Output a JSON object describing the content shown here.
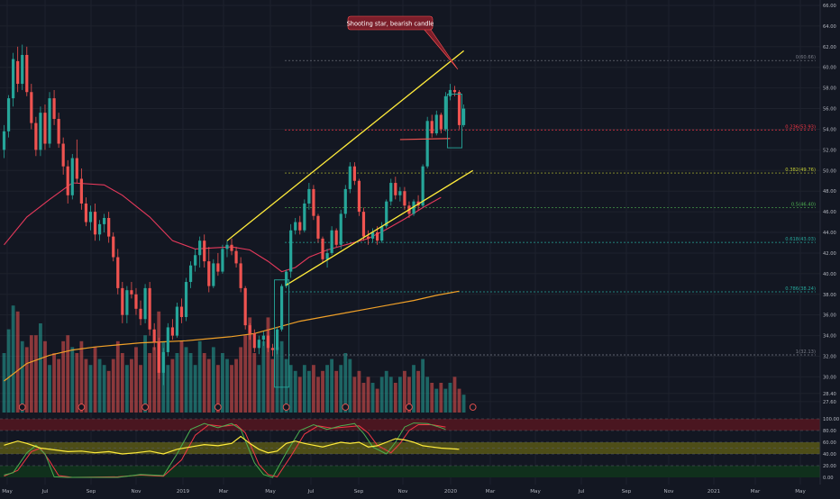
{
  "theme": {
    "background": "#131722",
    "grid": "#1e222d",
    "up": "#26a69a",
    "down": "#ef5350",
    "channel": "#ffeb3b",
    "ma50": "#e5395b",
    "ma200": "#f0a028",
    "fib_colors": [
      "#787b86",
      "#f23645",
      "#c0ca33",
      "#4caf50",
      "#26a69a",
      "#26a69a",
      "#787b86"
    ],
    "callout_bg": "#7b1e2a",
    "callout_border": "#ff5252",
    "stoch_k": "#4caf50",
    "stoch_d": "#f23645",
    "rsi": "#ffeb3b",
    "overbought_band": "#4a1620",
    "rsi_band": "#4d4d18",
    "oversold_band": "#10301c",
    "earnings_marker": "#ef5350"
  },
  "annotation": {
    "callout": "Shooting star, bearish candle"
  },
  "chart_data": {
    "type": "candlestick",
    "title": "",
    "price_axis": {
      "ylim": [
        26.72,
        66.0
      ],
      "ticks": [
        "66.00",
        "64.00",
        "62.00",
        "60.00",
        "58.00",
        "56.00",
        "54.00",
        "52.00",
        "50.00",
        "48.00",
        "46.00",
        "44.00",
        "42.00",
        "40.00",
        "38.00",
        "36.00",
        "34.00",
        "32.00",
        "30.00",
        "28.40",
        "27.60"
      ]
    },
    "indicator_axis": {
      "ylim": [
        0,
        100
      ],
      "ticks": [
        "100.00",
        "80.00",
        "60.00",
        "40.00",
        "20.00",
        "0.00"
      ]
    },
    "time_axis": [
      "May",
      "Jul",
      "Sep",
      "Nov",
      "2019",
      "Mar",
      "May",
      "Jul",
      "Sep",
      "Nov",
      "2020",
      "Mar",
      "May",
      "Jul",
      "Sep",
      "Nov",
      "2021",
      "Mar",
      "May"
    ],
    "fibonacci_levels": [
      {
        "label": "0(60.66)",
        "value": 60.66
      },
      {
        "label": "0.236(53.93)",
        "value": 53.93
      },
      {
        "label": "0.382(49.76)",
        "value": 49.76
      },
      {
        "label": "0.5(46.40)",
        "value": 46.4
      },
      {
        "label": "0.618(43.03)",
        "value": 43.03
      },
      {
        "label": "0.786(38.24)",
        "value": 38.24
      },
      {
        "label": "1(32.13)",
        "value": 32.13
      }
    ],
    "ohlc": [
      [
        52.0,
        54.4,
        51.2,
        53.8
      ],
      [
        53.8,
        57.3,
        53.2,
        57.0
      ],
      [
        57.0,
        61.4,
        56.2,
        60.8
      ],
      [
        60.6,
        62.0,
        57.6,
        58.4
      ],
      [
        58.4,
        62.2,
        57.8,
        61.2
      ],
      [
        61.2,
        62.0,
        57.2,
        57.6
      ],
      [
        57.6,
        58.4,
        54.0,
        54.6
      ],
      [
        54.6,
        55.2,
        51.4,
        52.0
      ],
      [
        52.0,
        56.2,
        51.4,
        55.6
      ],
      [
        55.6,
        56.4,
        52.0,
        52.6
      ],
      [
        52.6,
        57.6,
        52.2,
        57.0
      ],
      [
        57.0,
        57.8,
        54.4,
        55.0
      ],
      [
        55.0,
        55.6,
        52.2,
        52.6
      ],
      [
        52.6,
        53.2,
        49.6,
        50.4
      ],
      [
        50.4,
        51.0,
        46.8,
        47.6
      ],
      [
        47.6,
        51.6,
        47.2,
        51.2
      ],
      [
        51.2,
        53.0,
        48.8,
        49.2
      ],
      [
        49.2,
        50.2,
        46.2,
        46.8
      ],
      [
        46.8,
        47.4,
        44.6,
        45.0
      ],
      [
        45.0,
        46.6,
        44.2,
        46.0
      ],
      [
        46.0,
        46.8,
        43.2,
        43.8
      ],
      [
        43.8,
        45.2,
        43.2,
        44.8
      ],
      [
        44.8,
        45.8,
        44.0,
        45.4
      ],
      [
        45.4,
        46.0,
        43.0,
        43.6
      ],
      [
        43.6,
        44.0,
        41.2,
        41.6
      ],
      [
        41.6,
        42.4,
        38.0,
        38.6
      ],
      [
        38.6,
        39.2,
        35.2,
        36.0
      ],
      [
        36.0,
        38.8,
        35.2,
        38.4
      ],
      [
        38.4,
        39.2,
        37.6,
        38.0
      ],
      [
        38.0,
        38.6,
        36.0,
        36.6
      ],
      [
        36.6,
        37.4,
        35.0,
        35.6
      ],
      [
        35.6,
        39.0,
        35.2,
        38.6
      ],
      [
        38.6,
        39.2,
        34.0,
        34.6
      ],
      [
        34.6,
        35.2,
        32.6,
        33.4
      ],
      [
        33.4,
        33.8,
        29.8,
        30.4
      ],
      [
        30.4,
        32.8,
        29.2,
        32.4
      ],
      [
        32.4,
        35.2,
        32.0,
        34.8
      ],
      [
        34.8,
        35.6,
        33.6,
        34.0
      ],
      [
        34.0,
        37.2,
        33.8,
        36.8
      ],
      [
        36.8,
        37.6,
        35.2,
        35.8
      ],
      [
        35.8,
        39.6,
        35.4,
        39.2
      ],
      [
        39.2,
        41.2,
        38.6,
        40.8
      ],
      [
        40.8,
        42.4,
        40.2,
        41.8
      ],
      [
        41.8,
        43.6,
        40.6,
        43.2
      ],
      [
        43.2,
        43.8,
        40.6,
        41.2
      ],
      [
        41.2,
        42.6,
        38.2,
        38.8
      ],
      [
        38.8,
        41.4,
        38.6,
        41.0
      ],
      [
        41.0,
        42.0,
        39.8,
        40.2
      ],
      [
        40.2,
        42.8,
        40.0,
        42.4
      ],
      [
        42.4,
        43.2,
        41.6,
        42.8
      ],
      [
        42.8,
        43.4,
        41.8,
        42.2
      ],
      [
        42.2,
        42.6,
        40.6,
        41.0
      ],
      [
        41.0,
        41.6,
        38.2,
        38.6
      ],
      [
        38.6,
        38.8,
        34.6,
        35.0
      ],
      [
        35.0,
        35.2,
        33.6,
        34.2
      ],
      [
        34.2,
        34.6,
        32.4,
        32.8
      ],
      [
        32.8,
        34.0,
        32.2,
        33.6
      ],
      [
        33.6,
        34.4,
        33.0,
        34.0
      ],
      [
        34.0,
        34.6,
        32.4,
        32.8
      ],
      [
        32.8,
        33.2,
        32.0,
        32.6
      ],
      [
        32.6,
        34.8,
        32.2,
        34.6
      ],
      [
        34.6,
        39.0,
        34.4,
        38.8
      ],
      [
        38.8,
        40.4,
        38.6,
        40.2
      ],
      [
        40.2,
        44.8,
        39.6,
        44.2
      ],
      [
        44.2,
        45.4,
        43.8,
        45.0
      ],
      [
        45.0,
        45.6,
        43.8,
        44.2
      ],
      [
        44.2,
        47.2,
        44.0,
        46.8
      ],
      [
        46.8,
        48.8,
        46.2,
        48.2
      ],
      [
        48.2,
        48.6,
        45.2,
        45.6
      ],
      [
        45.6,
        45.8,
        43.0,
        43.4
      ],
      [
        43.4,
        43.6,
        41.0,
        41.4
      ],
      [
        41.4,
        42.4,
        40.6,
        42.0
      ],
      [
        42.0,
        44.6,
        41.8,
        44.2
      ],
      [
        44.2,
        44.4,
        42.6,
        42.8
      ],
      [
        42.8,
        46.2,
        42.4,
        45.8
      ],
      [
        45.8,
        48.6,
        45.4,
        48.2
      ],
      [
        48.2,
        50.8,
        47.8,
        50.4
      ],
      [
        50.4,
        50.8,
        48.6,
        49.0
      ],
      [
        49.0,
        49.2,
        45.6,
        46.0
      ],
      [
        46.0,
        46.4,
        43.2,
        43.6
      ],
      [
        43.6,
        44.2,
        42.8,
        43.4
      ],
      [
        43.4,
        44.4,
        43.0,
        44.0
      ],
      [
        44.0,
        44.6,
        42.8,
        43.2
      ],
      [
        43.2,
        45.0,
        43.0,
        44.6
      ],
      [
        44.6,
        47.2,
        44.4,
        47.0
      ],
      [
        47.0,
        49.2,
        46.6,
        48.8
      ],
      [
        48.8,
        49.4,
        47.2,
        47.6
      ],
      [
        47.6,
        48.4,
        47.0,
        48.0
      ],
      [
        48.0,
        48.4,
        46.2,
        46.6
      ],
      [
        46.6,
        47.0,
        45.4,
        45.8
      ],
      [
        45.8,
        47.2,
        45.6,
        47.0
      ],
      [
        47.0,
        47.6,
        46.2,
        46.6
      ],
      [
        46.6,
        50.6,
        46.4,
        50.4
      ],
      [
        50.4,
        55.2,
        50.2,
        54.8
      ],
      [
        54.8,
        55.4,
        53.2,
        53.6
      ],
      [
        53.6,
        55.8,
        53.4,
        55.4
      ],
      [
        55.4,
        55.6,
        53.6,
        54.0
      ],
      [
        54.0,
        57.6,
        53.8,
        57.2
      ],
      [
        57.2,
        58.4,
        56.8,
        57.8
      ],
      [
        57.8,
        58.2,
        57.2,
        57.6
      ],
      [
        57.6,
        57.8,
        54.0,
        54.4
      ],
      [
        54.4,
        56.4,
        54.2,
        56.0
      ]
    ],
    "ma50": [
      [
        0,
        42.8
      ],
      [
        5,
        45.5
      ],
      [
        10,
        47.2
      ],
      [
        15,
        48.8
      ],
      [
        22,
        48.6
      ],
      [
        26,
        47.6
      ],
      [
        32,
        45.5
      ],
      [
        37,
        43.2
      ],
      [
        42,
        42.4
      ],
      [
        46,
        42.5
      ],
      [
        50,
        42.6
      ],
      [
        54,
        42.3
      ],
      [
        58,
        41.2
      ],
      [
        61,
        40.2
      ],
      [
        64,
        40.6
      ],
      [
        67,
        41.6
      ],
      [
        71,
        42.3
      ],
      [
        75,
        42.8
      ],
      [
        80,
        43.4
      ],
      [
        84,
        44.3
      ],
      [
        88,
        45.3
      ],
      [
        92,
        46.4
      ],
      [
        96,
        47.4
      ]
    ],
    "ma200": [
      [
        0,
        29.6
      ],
      [
        5,
        31.3
      ],
      [
        10,
        32.1
      ],
      [
        15,
        32.6
      ],
      [
        20,
        32.9
      ],
      [
        25,
        33.1
      ],
      [
        30,
        33.3
      ],
      [
        35,
        33.4
      ],
      [
        40,
        33.5
      ],
      [
        45,
        33.7
      ],
      [
        50,
        33.9
      ],
      [
        55,
        34.2
      ],
      [
        60,
        34.8
      ],
      [
        65,
        35.4
      ],
      [
        70,
        35.8
      ],
      [
        75,
        36.2
      ],
      [
        80,
        36.6
      ],
      [
        85,
        37.0
      ],
      [
        90,
        37.4
      ],
      [
        95,
        37.9
      ],
      [
        100,
        38.3
      ]
    ],
    "channel_upper": [
      [
        49,
        43.2
      ],
      [
        101,
        61.6
      ]
    ],
    "channel_lower": [
      [
        62,
        38.9
      ],
      [
        103,
        50.0
      ]
    ],
    "resistance_line": [
      [
        87,
        53.0
      ],
      [
        98,
        53.1
      ]
    ],
    "volume": [
      10,
      14,
      18,
      17,
      12,
      11,
      13,
      13,
      15,
      12,
      8,
      10,
      9,
      12,
      13,
      11,
      10,
      12,
      9,
      8,
      11,
      9,
      8,
      7,
      9,
      12,
      10,
      8,
      9,
      11,
      8,
      13,
      10,
      11,
      17,
      12,
      8,
      9,
      10,
      12,
      11,
      10,
      8,
      12,
      10,
      9,
      11,
      8,
      10,
      9,
      8,
      9,
      11,
      13,
      16,
      10,
      8,
      12,
      16,
      9,
      11,
      12,
      9,
      8,
      7,
      6,
      8,
      7,
      8,
      6,
      7,
      8,
      9,
      7,
      8,
      10,
      9,
      6,
      7,
      5,
      6,
      5,
      4,
      6,
      7,
      6,
      5,
      6,
      7,
      6,
      8,
      7,
      9,
      6,
      5,
      4,
      5,
      4,
      5,
      6,
      4,
      3
    ],
    "earnings": [
      4,
      17,
      31,
      47,
      62,
      75,
      89,
      103
    ],
    "stochastic": {
      "k": [
        [
          0,
          4
        ],
        [
          2,
          8
        ],
        [
          5,
          42
        ],
        [
          7,
          55
        ],
        [
          9,
          40
        ],
        [
          11,
          1
        ],
        [
          14,
          0
        ],
        [
          25,
          0
        ],
        [
          30,
          5
        ],
        [
          35,
          3
        ],
        [
          38,
          40
        ],
        [
          41,
          82
        ],
        [
          44,
          92
        ],
        [
          47,
          85
        ],
        [
          50,
          92
        ],
        [
          52,
          82
        ],
        [
          55,
          25
        ],
        [
          57,
          5
        ],
        [
          59,
          0
        ],
        [
          62,
          42
        ],
        [
          65,
          80
        ],
        [
          68,
          90
        ],
        [
          71,
          82
        ],
        [
          74,
          88
        ],
        [
          77,
          92
        ],
        [
          79,
          75
        ],
        [
          81,
          52
        ],
        [
          84,
          40
        ],
        [
          86,
          60
        ],
        [
          88,
          86
        ],
        [
          90,
          93
        ],
        [
          93,
          92
        ],
        [
          96,
          85
        ],
        [
          97,
          82
        ]
      ],
      "d": [
        [
          0,
          2
        ],
        [
          3,
          12
        ],
        [
          6,
          44
        ],
        [
          8,
          50
        ],
        [
          10,
          28
        ],
        [
          12,
          3
        ],
        [
          15,
          0
        ],
        [
          25,
          1
        ],
        [
          30,
          4
        ],
        [
          35,
          2
        ],
        [
          39,
          30
        ],
        [
          42,
          72
        ],
        [
          45,
          90
        ],
        [
          48,
          87
        ],
        [
          51,
          90
        ],
        [
          53,
          76
        ],
        [
          56,
          22
        ],
        [
          58,
          5
        ],
        [
          60,
          1
        ],
        [
          63,
          36
        ],
        [
          66,
          74
        ],
        [
          69,
          88
        ],
        [
          72,
          84
        ],
        [
          75,
          86
        ],
        [
          78,
          88
        ],
        [
          80,
          76
        ],
        [
          82,
          55
        ],
        [
          85,
          42
        ],
        [
          87,
          58
        ],
        [
          89,
          80
        ],
        [
          91,
          90
        ],
        [
          94,
          90
        ],
        [
          97,
          86
        ]
      ]
    },
    "rsi": [
      [
        0,
        55
      ],
      [
        3,
        62
      ],
      [
        5,
        58
      ],
      [
        8,
        50
      ],
      [
        11,
        47
      ],
      [
        14,
        44
      ],
      [
        17,
        45
      ],
      [
        20,
        42
      ],
      [
        23,
        44
      ],
      [
        26,
        40
      ],
      [
        29,
        42
      ],
      [
        32,
        45
      ],
      [
        35,
        40
      ],
      [
        38,
        48
      ],
      [
        41,
        52
      ],
      [
        44,
        56
      ],
      [
        47,
        54
      ],
      [
        50,
        58
      ],
      [
        52,
        70
      ],
      [
        54,
        58
      ],
      [
        56,
        48
      ],
      [
        58,
        42
      ],
      [
        60,
        45
      ],
      [
        62,
        58
      ],
      [
        64,
        62
      ],
      [
        66,
        58
      ],
      [
        68,
        55
      ],
      [
        70,
        52
      ],
      [
        72,
        56
      ],
      [
        74,
        60
      ],
      [
        76,
        58
      ],
      [
        78,
        60
      ],
      [
        80,
        52
      ],
      [
        82,
        54
      ],
      [
        84,
        60
      ],
      [
        86,
        66
      ],
      [
        88,
        64
      ],
      [
        90,
        60
      ],
      [
        92,
        54
      ],
      [
        94,
        52
      ],
      [
        96,
        50
      ],
      [
        98,
        49
      ],
      [
        100,
        48
      ]
    ]
  }
}
